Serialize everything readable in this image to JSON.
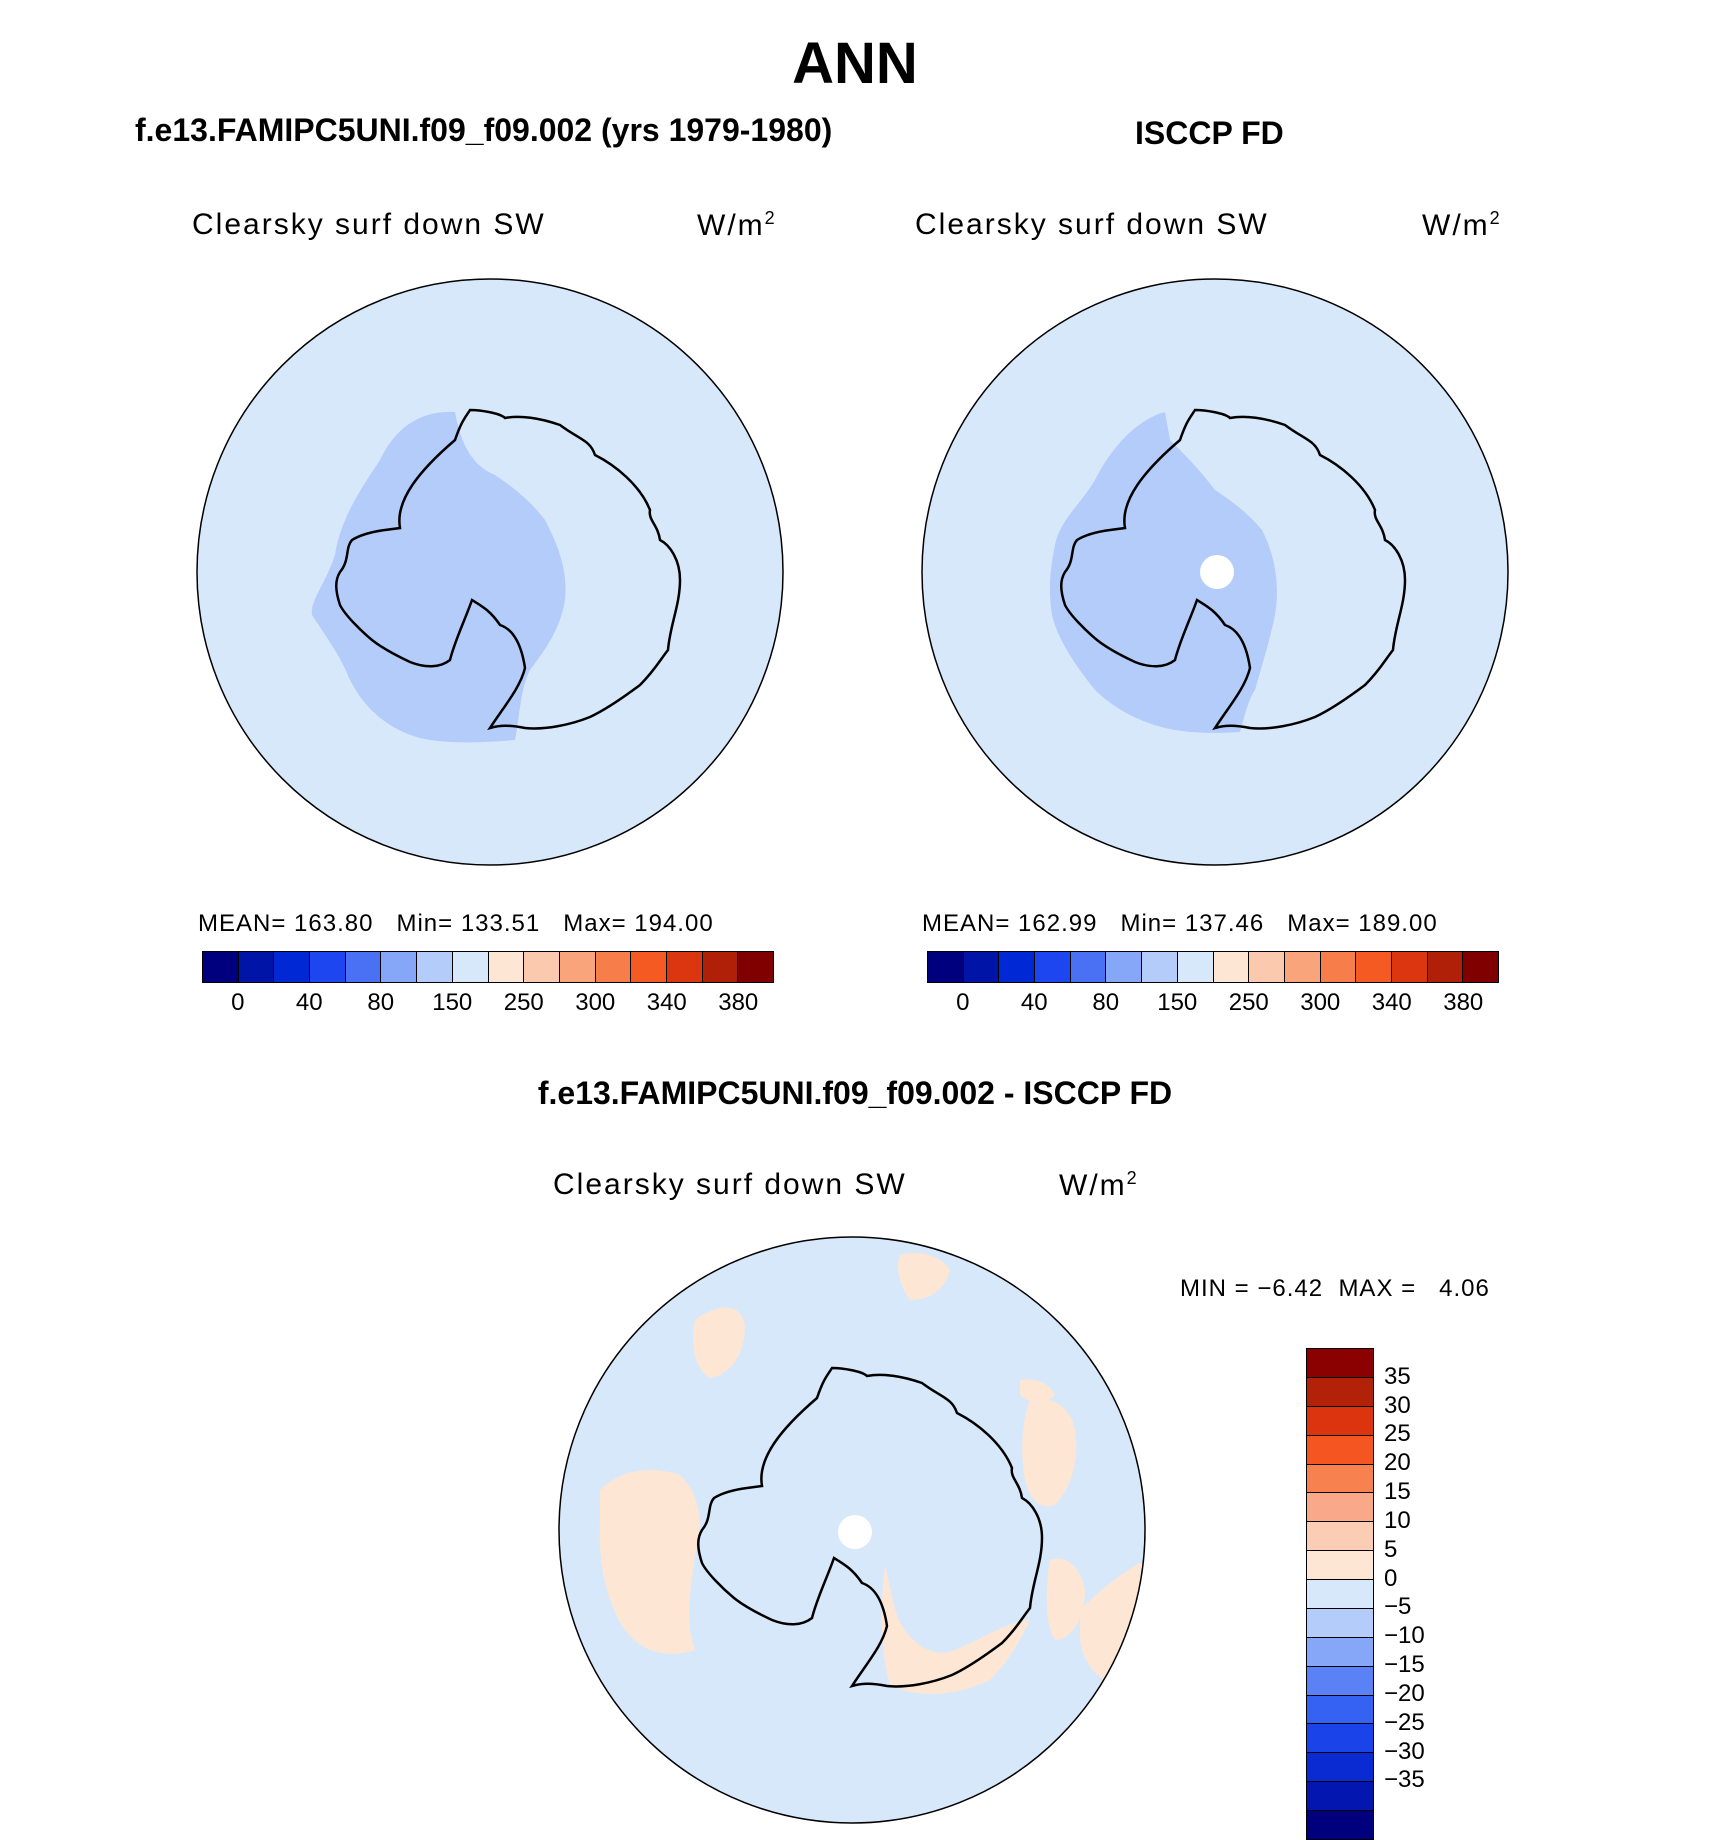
{
  "main_title": "ANN",
  "panels": {
    "model": {
      "title": "f.e13.FAMIPC5UNI.f09_f09.002 (yrs 1979-1980)",
      "variable": "Clearsky surf down SW",
      "units_base": "W/m",
      "units_exp": "2",
      "stats": {
        "mean_label": "MEAN=",
        "mean": "163.80",
        "min_label": "Min=",
        "min": "133.51",
        "max_label": "Max=",
        "max": "194.00"
      }
    },
    "obs": {
      "title": "ISCCP FD",
      "variable": "Clearsky surf down SW",
      "units_base": "W/m",
      "units_exp": "2",
      "stats": {
        "mean_label": "MEAN=",
        "mean": "162.99",
        "min_label": "Min=",
        "min": "137.46",
        "max_label": "Max=",
        "max": "189.00"
      }
    },
    "diff": {
      "title": "f.e13.FAMIPC5UNI.f09_f09.002 - ISCCP FD",
      "variable": "Clearsky surf down SW",
      "units_base": "W/m",
      "units_exp": "2",
      "stats": {
        "min_label": "MIN =",
        "min": "−6.42",
        "max_label": "MAX =",
        "max": "4.06"
      }
    }
  },
  "colorbars": {
    "abs": {
      "colors": [
        "#00007f",
        "#0014a8",
        "#0028d4",
        "#1e46f0",
        "#4a70f4",
        "#86a6f8",
        "#b4ccfa",
        "#d7e8fb",
        "#fde7d4",
        "#fbc9ad",
        "#f9a47b",
        "#f77e4b",
        "#f45a22",
        "#dc3610",
        "#b02008",
        "#800000"
      ],
      "labels": [
        "0",
        "40",
        "80",
        "150",
        "250",
        "300",
        "340",
        "380"
      ]
    },
    "diff": {
      "colors": [
        "#8b0000",
        "#b22208",
        "#dd3410",
        "#f55520",
        "#f7824f",
        "#f9a98a",
        "#fbcdb4",
        "#fde7d4",
        "#d7e8fb",
        "#b4ccfa",
        "#86a6f8",
        "#5a82f6",
        "#3562f2",
        "#1a44ea",
        "#0a2ad2",
        "#0416b0",
        "#00007f"
      ],
      "labels": [
        "35",
        "30",
        "25",
        "20",
        "15",
        "10",
        "5",
        "0",
        "−5",
        "−10",
        "−15",
        "−20",
        "−25",
        "−30",
        "−35"
      ]
    }
  },
  "colors": {
    "ocean_light_blue": "#d7e8fb",
    "land_blue": "#b4ccfa",
    "positive_diff": "#fde7d4",
    "missing": "#ffffff"
  }
}
